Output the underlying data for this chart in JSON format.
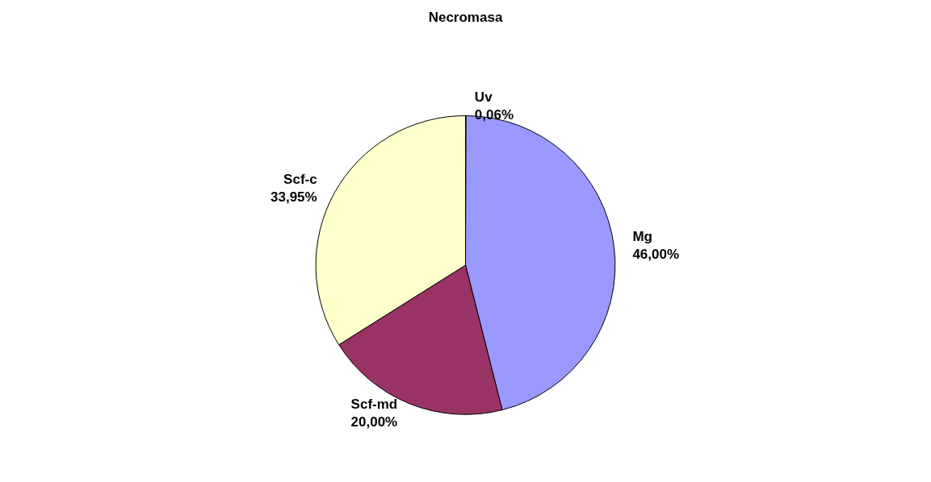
{
  "chart_data": {
    "type": "pie",
    "title": "Necromasa",
    "categories": [
      "Uv",
      "Mg",
      "Scf-md",
      "Scf-c"
    ],
    "values": [
      0.06,
      46.0,
      20.0,
      33.95
    ],
    "value_labels": [
      "0,06%",
      "46,00%",
      "20,00%",
      "33,95%"
    ],
    "colors": [
      "#668080",
      "#9999ff",
      "#993366",
      "#ffffcc"
    ],
    "legend": false
  }
}
